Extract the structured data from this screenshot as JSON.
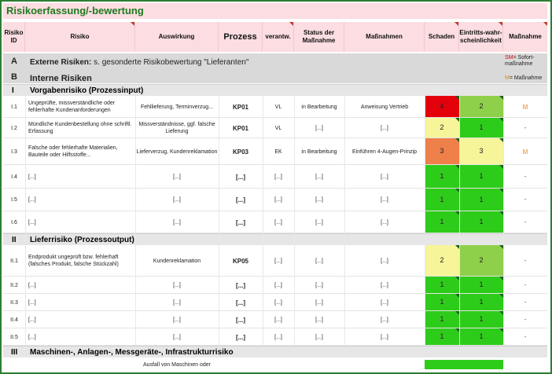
{
  "title": "Risikoerfassung/-bewertung",
  "headers": {
    "id": "Risiko ID",
    "risiko": "Risiko",
    "auswirkung": "Auswirkung",
    "prozess": "Prozess",
    "verantw": "verantw.",
    "status": "Status der Maßnahme",
    "massnahmen": "Maßnahmen",
    "schaden": "Schaden",
    "eintritt": "Eintritts-wahr-scheinlichkeit",
    "massnahme": "Maßnahme"
  },
  "section_a": {
    "letter": "A",
    "label": "Externe Risiken:",
    "note": "s. gesonderte Risikobewertung \"Lieferanten\""
  },
  "section_b": {
    "letter": "B",
    "label": "Interne Risiken"
  },
  "legend": {
    "sm_key": "SM",
    "sm_text": "= Sofort-maßnahme",
    "m_key": "M",
    "m_text": "= Maßnahme"
  },
  "groups": [
    {
      "roman": "I",
      "label": "Vorgabenrisiko (Prozessinput)"
    },
    {
      "roman": "II",
      "label": "Lieferrisiko (Prozessoutput)"
    },
    {
      "roman": "III",
      "label": "Maschinen-, Anlagen-, Messgeräte-, Infrastrukturrisiko"
    }
  ],
  "rows": [
    {
      "id": "I.1",
      "risiko": "Ungeprüfte, missverständliche oder fehlerhafte Kundenanforderungen",
      "auswirkung": "Fehllieferung, Terminverzug...",
      "prozess": "KP01",
      "verantw": "VL",
      "status": "in Bearbeitung",
      "massnahmen": "Anweisung Vertrieb",
      "schaden": "4",
      "schaden_color": "#e3000b",
      "eintritt": "2",
      "eintritt_color": "#8fd04a",
      "massnahme": "M"
    },
    {
      "id": "I.2",
      "risiko": "Mündliche Kundenbestellung ohne schriftl. Erfassung",
      "auswirkung": "Missverständnisse, ggf. falsche Lieferung",
      "prozess": "KP01",
      "verantw": "VL",
      "status": "[...]",
      "massnahmen": "[...]",
      "schaden": "2",
      "schaden_color": "#f6f59a",
      "eintritt": "1",
      "eintritt_color": "#2ecc1a",
      "massnahme": "-"
    },
    {
      "id": "I.3",
      "risiko": "Falsche oder fehlerhafte Materialien, Bauteile oder Hilfsstoffe...",
      "auswirkung": "Lieferverzug, Kundenreklamation",
      "prozess": "KP03",
      "verantw": "EK",
      "status": "in Bearbeitung",
      "massnahmen": "Einführen 4-Augen-Prinzip",
      "schaden": "3",
      "schaden_color": "#f0804a",
      "eintritt": "3",
      "eintritt_color": "#f6f59a",
      "massnahme": "M"
    },
    {
      "id": "I.4",
      "risiko": "[...]",
      "auswirkung": "[...]",
      "prozess": "[...]",
      "verantw": "[...]",
      "status": "[...]",
      "massnahmen": "[...]",
      "schaden": "1",
      "schaden_color": "#2ecc1a",
      "eintritt": "1",
      "eintritt_color": "#2ecc1a",
      "massnahme": "-"
    },
    {
      "id": "I.5",
      "risiko": "[...]",
      "auswirkung": "[...]",
      "prozess": "[...]",
      "verantw": "[...]",
      "status": "[...]",
      "massnahmen": "[...]",
      "schaden": "1",
      "schaden_color": "#2ecc1a",
      "eintritt": "1",
      "eintritt_color": "#2ecc1a",
      "massnahme": "-"
    },
    {
      "id": "I.6",
      "risiko": "[...]",
      "auswirkung": "[...]",
      "prozess": "[...]",
      "verantw": "[...]",
      "status": "[...]",
      "massnahmen": "[...]",
      "schaden": "1",
      "schaden_color": "#2ecc1a",
      "eintritt": "1",
      "eintritt_color": "#2ecc1a",
      "massnahme": "-"
    },
    {
      "id": "II.1",
      "risiko": "Endprodukt ungeprüft bzw. fehlerhaft (falsches Produkt, falsche Stückzahl)",
      "auswirkung": "Kundenreklamation",
      "prozess": "KP05",
      "verantw": "[...]",
      "status": "[...]",
      "massnahmen": "[...]",
      "schaden": "2",
      "schaden_color": "#f6f59a",
      "eintritt": "2",
      "eintritt_color": "#8fd04a",
      "massnahme": "-"
    },
    {
      "id": "II.2",
      "risiko": "[...]",
      "auswirkung": "[...]",
      "prozess": "[...]",
      "verantw": "[...]",
      "status": "[...]",
      "massnahmen": "[...]",
      "schaden": "1",
      "schaden_color": "#2ecc1a",
      "eintritt": "1",
      "eintritt_color": "#2ecc1a",
      "massnahme": "-"
    },
    {
      "id": "II.3",
      "risiko": "[...]",
      "auswirkung": "[...]",
      "prozess": "[...]",
      "verantw": "[...]",
      "status": "[...]",
      "massnahmen": "[...]",
      "schaden": "1",
      "schaden_color": "#2ecc1a",
      "eintritt": "1",
      "eintritt_color": "#2ecc1a",
      "massnahme": "-"
    },
    {
      "id": "II.4",
      "risiko": "[...]",
      "auswirkung": "[...]",
      "prozess": "[...]",
      "verantw": "[...]",
      "status": "[...]",
      "massnahmen": "[...]",
      "schaden": "1",
      "schaden_color": "#2ecc1a",
      "eintritt": "1",
      "eintritt_color": "#2ecc1a",
      "massnahme": "-"
    },
    {
      "id": "II.5",
      "risiko": "[...]",
      "auswirkung": "[...]",
      "prozess": "[...]",
      "verantw": "[...]",
      "status": "[...]",
      "massnahmen": "[...]",
      "schaden": "1",
      "schaden_color": "#2ecc1a",
      "eintritt": "1",
      "eintritt_color": "#2ecc1a",
      "massnahme": "-"
    }
  ],
  "last_row": {
    "auswirkung": "Ausfall von Maschinen oder",
    "schaden_color": "#2ecc1a"
  }
}
